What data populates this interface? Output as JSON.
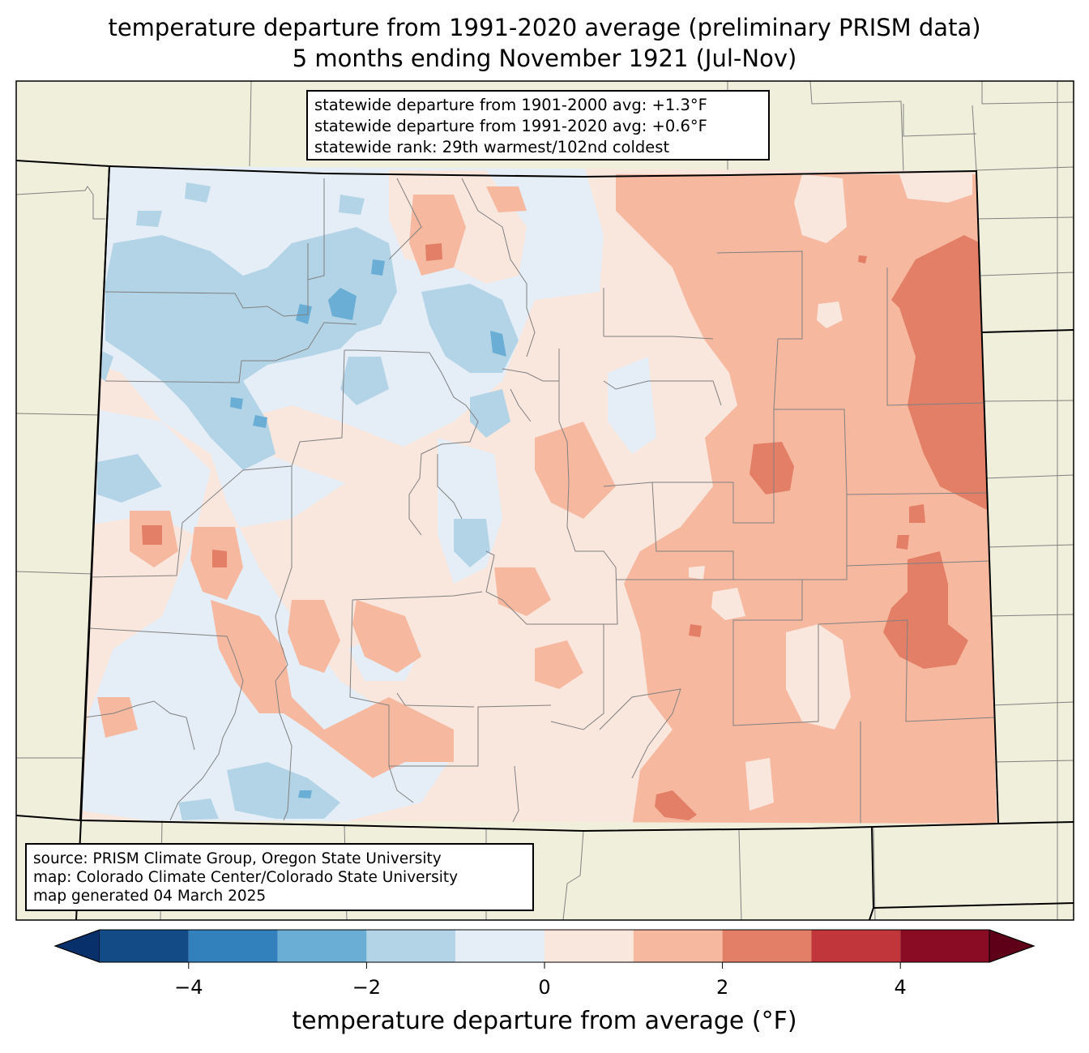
{
  "title_line1": "temperature departure from 1991-2020 average (preliminary PRISM data)",
  "title_line2": "5 months ending November 1921 (Jul-Nov)",
  "stats": {
    "line1": "statewide departure from 1901-2000 avg: +1.3°F",
    "line2": "statewide departure from 1991-2020 avg: +0.6°F",
    "line3": "statewide rank: 29th warmest/102nd coldest"
  },
  "source": {
    "line1": "source: PRISM Climate Group, Oregon State University",
    "line2": "map: Colorado Climate Center/Colorado State University",
    "line3": "map generated 04 March 2025"
  },
  "colorbar": {
    "title": "temperature departure from average (°F)",
    "ticks": [
      "−4",
      "−2",
      "0",
      "2",
      "4"
    ],
    "tick_values": [
      -4,
      -2,
      0,
      2,
      4
    ],
    "range": [
      -5,
      5
    ],
    "colors": [
      "#08306b",
      "#134b87",
      "#3280bc",
      "#6aaed5",
      "#b3d4e7",
      "#e5eef6",
      "#f9e6dd",
      "#f6b9a0",
      "#e27f66",
      "#c0363a",
      "#890c24",
      "#5e0018"
    ]
  },
  "palette": {
    "land_outside": "#f0efdc",
    "state_border": "#000000",
    "county_lines": "#808080"
  }
}
